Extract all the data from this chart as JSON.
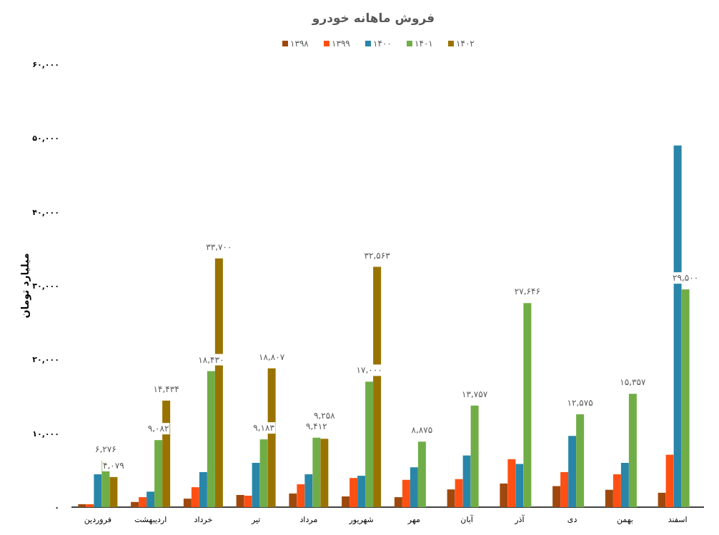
{
  "chart_data": {
    "type": "bar",
    "title": "فروش ماهانه خودرو",
    "ylabel": "میلیارد تومان",
    "categories": [
      "فروردین",
      "اردیبهشت",
      "خرداد",
      "تیر",
      "مرداد",
      "شهریور",
      "مهر",
      "آبان",
      "آذر",
      "دی",
      "بهمن",
      "اسفند"
    ],
    "series": [
      {
        "name": "۱۳۹۸",
        "color": "#9e480e",
        "values": [
          400,
          700,
          1150,
          1650,
          1850,
          1450,
          1350,
          2400,
          3200,
          2850,
          2350,
          1950
        ]
      },
      {
        "name": "۱۳۹۹",
        "color": "#fe5014",
        "values": [
          400,
          1350,
          2700,
          1550,
          3100,
          3950,
          3700,
          3800,
          6500,
          4750,
          4450,
          7100
        ]
      },
      {
        "name": "۱۴۰۰",
        "color": "#2986a8",
        "values": [
          4450,
          2100,
          4750,
          6000,
          4450,
          4250,
          5400,
          7000,
          5850,
          9650,
          6000,
          49000
        ]
      },
      {
        "name": "۱۴۰۱",
        "color": "#70ad47",
        "values": [
          6276,
          9082,
          18430,
          9183,
          9412,
          17000,
          8875,
          13757,
          27646,
          12575,
          15357,
          29500
        ],
        "value_labels": [
          "۶,۲۷۶",
          "۹,۰۸۲",
          "۱۸,۴۳۰",
          "۹,۱۸۳",
          "۹,۴۱۲",
          "۱۷,۰۰۰",
          "۸,۸۷۵",
          "۱۳,۷۵۷",
          "۲۷,۶۴۶",
          "۱۲,۵۷۵",
          "۱۵,۳۵۷",
          "۲۹,۵۰۰"
        ]
      },
      {
        "name": "۱۴۰۲",
        "color": "#997300",
        "values": [
          4079,
          14434,
          33700,
          18807,
          9258,
          32563,
          null,
          null,
          null,
          null,
          null,
          null
        ],
        "value_labels": [
          "۴,۰۷۹",
          "۱۴,۴۳۴",
          "۳۳,۷۰۰",
          "۱۸,۸۰۷",
          "۹,۲۵۸",
          "۳۲,۵۶۳",
          null,
          null,
          null,
          null,
          null,
          null
        ]
      }
    ],
    "ylim": [
      0,
      60000
    ],
    "yticks": [
      {
        "value": 0,
        "label": "۰"
      },
      {
        "value": 10000,
        "label": "۱۰,۰۰۰"
      },
      {
        "value": 20000,
        "label": "۲۰,۰۰۰"
      },
      {
        "value": 30000,
        "label": "۳۰,۰۰۰"
      },
      {
        "value": 40000,
        "label": "۴۰,۰۰۰"
      },
      {
        "value": 50000,
        "label": "۵۰,۰۰۰"
      },
      {
        "value": 60000,
        "label": "۶۰,۰۰۰"
      }
    ],
    "grid": false,
    "legend": "top"
  }
}
